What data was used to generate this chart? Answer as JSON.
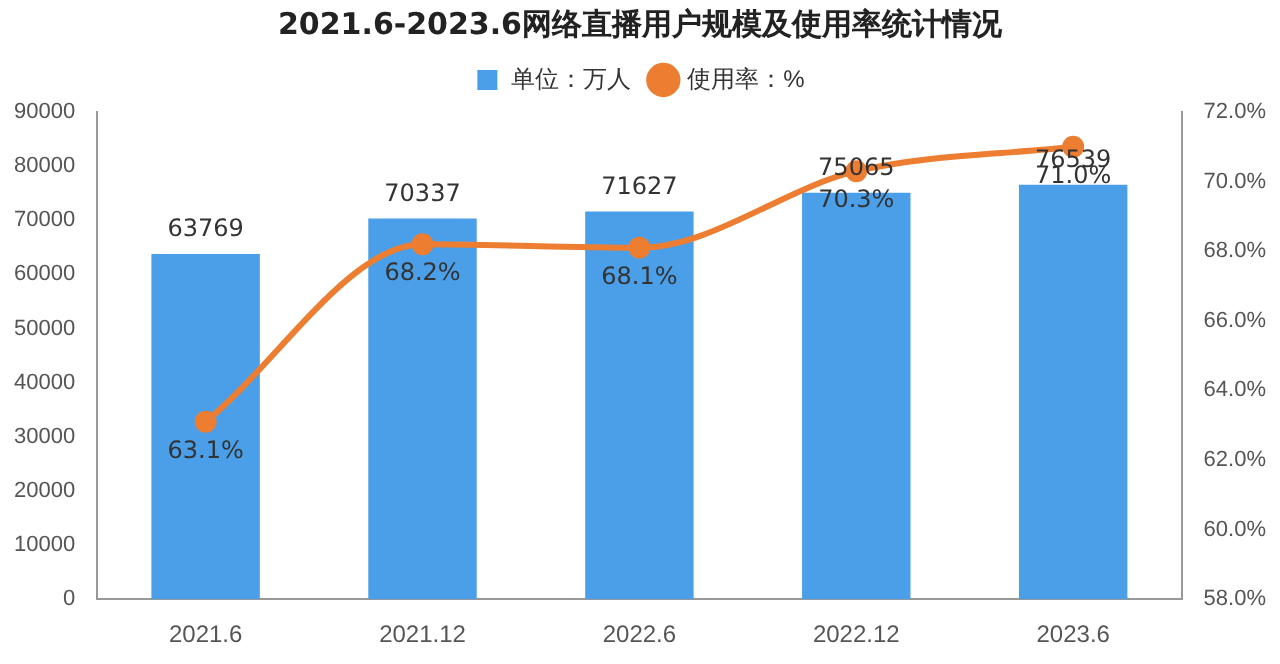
{
  "chart_data": {
    "type": "bar",
    "title": "2021.6-2023.6网络直播用户规模及使用率统计情况",
    "categories": [
      "2021.6",
      "2021.12",
      "2022.6",
      "2022.12",
      "2023.6"
    ],
    "series": [
      {
        "name": "单位：万人",
        "color": "#4a9fe8",
        "values": [
          63769,
          70337,
          71627,
          75065,
          76539
        ],
        "value_labels": [
          "63769",
          "70337",
          "71627",
          "75065",
          "76539"
        ]
      },
      {
        "name": "使用率：%",
        "type": "line",
        "axis": "y2",
        "color": "#ed7d31",
        "values": [
          63.1,
          68.2,
          68.1,
          70.3,
          71.0
        ],
        "value_labels": [
          "63.1%",
          "68.2%",
          "68.1%",
          "70.3%",
          "71.0%"
        ]
      }
    ],
    "ylim": [
      0,
      90000
    ],
    "yticks": [
      0,
      10000,
      20000,
      30000,
      40000,
      50000,
      60000,
      70000,
      80000,
      90000
    ],
    "y2lim": [
      58,
      72
    ],
    "y2ticks": [
      {
        "value": 58,
        "label": "58.0%"
      },
      {
        "value": 60,
        "label": "60.0%"
      },
      {
        "value": 62,
        "label": "62.0%"
      },
      {
        "value": 64,
        "label": "64.0%"
      },
      {
        "value": 66,
        "label": "66.0%"
      },
      {
        "value": 68,
        "label": "68.0%"
      },
      {
        "value": 70,
        "label": "70.0%"
      },
      {
        "value": 72,
        "label": "72.0%"
      }
    ],
    "grid": false,
    "legend": "top",
    "marker": "circle",
    "line_style": "solid"
  }
}
